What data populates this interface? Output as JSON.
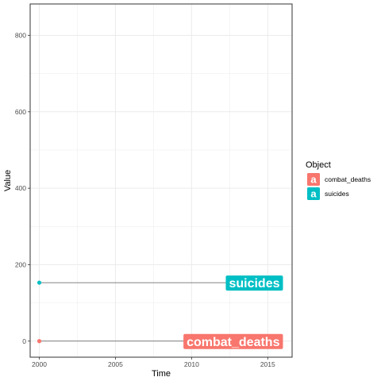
{
  "chart_data": {
    "type": "line",
    "xlabel": "Time",
    "ylabel": "Value",
    "xlim": [
      1999.4,
      2016.6
    ],
    "ylim": [
      -42,
      882
    ],
    "x_ticks": [
      2000,
      2005,
      2010,
      2015
    ],
    "y_ticks": [
      0,
      200,
      400,
      600,
      800
    ],
    "grid": true,
    "legend": {
      "title": "Object",
      "placement": "right",
      "key_letter": "a"
    },
    "series": [
      {
        "name": "combat_deaths",
        "color": "#F8766D",
        "start": {
          "x": 2000,
          "y": 0
        },
        "end": {
          "x": 2016,
          "y": 0
        },
        "end_label": "combat_deaths"
      },
      {
        "name": "suicides",
        "color": "#00BFC4",
        "start": {
          "x": 2000,
          "y": 153
        },
        "end": {
          "x": 2016,
          "y": 153
        },
        "end_label": "suicides"
      }
    ]
  }
}
